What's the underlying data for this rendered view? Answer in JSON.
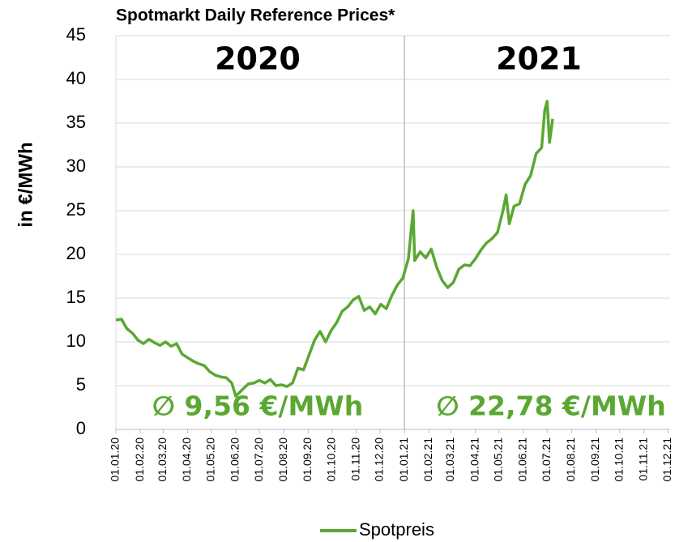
{
  "chart_data": {
    "type": "line",
    "title": "Spotmarkt Daily Reference Prices*",
    "y_label": "in €/MWh",
    "annotations": [
      "2020",
      "2021",
      "∅ 9,56 €/MWh",
      "∅ 22,78 €/MWh"
    ],
    "x": [
      "01.01.20",
      "08.01.20",
      "15.01.20",
      "22.01.20",
      "29.01.20",
      "05.02.20",
      "12.02.20",
      "19.02.20",
      "26.02.20",
      "04.03.20",
      "11.03.20",
      "18.03.20",
      "25.03.20",
      "01.04.20",
      "08.04.20",
      "15.04.20",
      "22.04.20",
      "29.04.20",
      "06.05.20",
      "13.05.20",
      "20.05.20",
      "27.05.20",
      "01.06.20",
      "10.06.20",
      "17.06.20",
      "24.06.20",
      "01.07.20",
      "08.07.20",
      "15.07.20",
      "22.07.20",
      "29.07.20",
      "05.08.20",
      "12.08.20",
      "19.08.20",
      "26.08.20",
      "02.09.20",
      "09.09.20",
      "16.09.20",
      "23.09.20",
      "30.09.20",
      "07.10.20",
      "14.10.20",
      "21.10.20",
      "28.10.20",
      "04.11.20",
      "11.11.20",
      "18.11.20",
      "25.11.20",
      "02.12.20",
      "09.12.20",
      "16.12.20",
      "23.12.20",
      "30.12.20",
      "06.01.21",
      "12.01.21",
      "14.01.21",
      "21.01.21",
      "28.01.21",
      "04.02.21",
      "11.02.21",
      "18.02.21",
      "25.02.21",
      "04.03.21",
      "11.03.21",
      "18.03.21",
      "25.03.21",
      "01.04.21",
      "08.04.21",
      "15.04.21",
      "22.04.21",
      "29.04.21",
      "06.05.21",
      "10.05.21",
      "14.05.21",
      "20.05.21",
      "27.05.21",
      "03.06.21",
      "10.06.21",
      "17.06.21",
      "24.06.21",
      "28.06.21",
      "01.07.21",
      "04.07.21",
      "08.07.21"
    ],
    "series": [
      {
        "name": "Spotpreis",
        "color": "#5aa832",
        "values": [
          12.5,
          12.6,
          11.5,
          11,
          10.2,
          9.8,
          10.3,
          9.9,
          9.6,
          10,
          9.5,
          9.8,
          8.6,
          8.2,
          7.8,
          7.5,
          7.3,
          6.6,
          6.2,
          6.0,
          5.9,
          5.3,
          3.8,
          4.6,
          5.2,
          5.3,
          5.6,
          5.3,
          5.7,
          5.0,
          5.1,
          4.9,
          5.3,
          7.0,
          6.8,
          8.5,
          10.2,
          11.2,
          10.0,
          11.3,
          12.2,
          13.5,
          14.0,
          14.8,
          15.2,
          13.6,
          14.0,
          13.2,
          14.3,
          13.8,
          15.3,
          16.5,
          17.3,
          19.5,
          25.0,
          19.3,
          20.3,
          19.6,
          20.6,
          18.5,
          17.0,
          16.2,
          16.8,
          18.3,
          18.8,
          18.7,
          19.5,
          20.5,
          21.3,
          21.8,
          22.5,
          25.0,
          26.8,
          23.5,
          25.5,
          25.8,
          28.0,
          29.0,
          31.5,
          32.2,
          36.5,
          37.5,
          32.8,
          35.5
        ]
      }
    ],
    "xlim": [
      "01.01.20",
      "04.12.21"
    ],
    "xticks": [
      "01.01.20",
      "01.02.20",
      "01.03.20",
      "01.04.20",
      "01.05.20",
      "01.06.20",
      "01.07.20",
      "01.08.20",
      "01.09.20",
      "01.10.20",
      "01.11.20",
      "01.12.20",
      "01.01.21",
      "01.02.21",
      "01.03.21",
      "01.04.21",
      "01.05.21",
      "01.06.21",
      "01.07.21",
      "01.08.21",
      "01.09.21",
      "01.10.21",
      "01.11.21",
      "01.12.21"
    ],
    "ylim": [
      0,
      45
    ],
    "yticks": [
      0,
      5,
      10,
      15,
      20,
      25,
      30,
      35,
      40,
      45
    ],
    "grid": true,
    "legend": "bottom"
  }
}
